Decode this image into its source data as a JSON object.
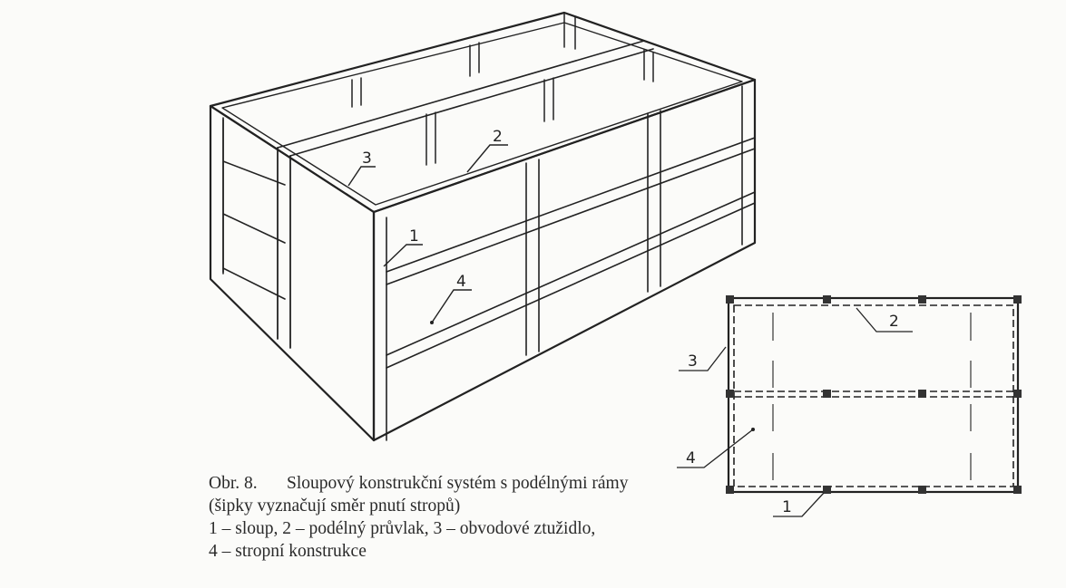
{
  "figure": {
    "labels_3d": [
      "1",
      "2",
      "3",
      "4"
    ],
    "labels_plan": [
      "1",
      "2",
      "3",
      "4"
    ]
  },
  "caption": {
    "label": "Obr. 8.",
    "title": "Sloupový konstrukční systém s podélnými rámy",
    "note": "(šipky vyznačují směr pnutí stropů)",
    "legend_line1": "1 – sloup, 2 – podélný průvlak, 3 – obvodové ztužidlo,",
    "legend_line2": "4 – stropní konstrukce"
  }
}
